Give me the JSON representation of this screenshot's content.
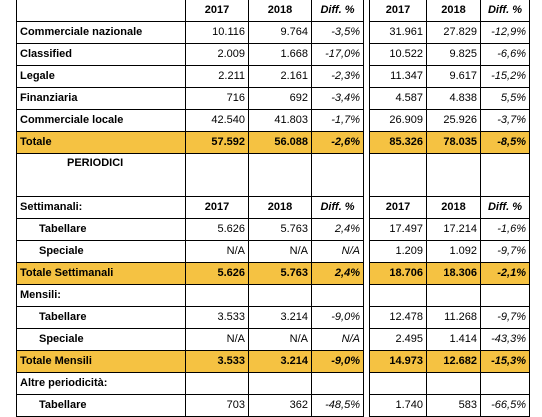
{
  "header": {
    "y1": "2017",
    "y2": "2018",
    "diff": "Diff. %"
  },
  "rows_top": [
    {
      "label": "Commerciale nazionale",
      "a1": "10.116",
      "a2": "9.764",
      "ad": "-3,5%",
      "b1": "31.961",
      "b2": "27.829",
      "bd": "-12,9%"
    },
    {
      "label": "Classified",
      "a1": "2.009",
      "a2": "1.668",
      "ad": "-17,0%",
      "b1": "10.522",
      "b2": "9.825",
      "bd": "-6,6%"
    },
    {
      "label": "Legale",
      "a1": "2.211",
      "a2": "2.161",
      "ad": "-2,3%",
      "b1": "11.347",
      "b2": "9.617",
      "bd": "-15,2%"
    },
    {
      "label": "Finanziaria",
      "a1": "716",
      "a2": "692",
      "ad": "-3,4%",
      "b1": "4.587",
      "b2": "4.838",
      "bd": "5,5%"
    },
    {
      "label": "Commerciale locale",
      "a1": "42.540",
      "a2": "41.803",
      "ad": "-1,7%",
      "b1": "26.909",
      "b2": "25.926",
      "bd": "-3,7%"
    }
  ],
  "totale": {
    "label": "Totale",
    "a1": "57.592",
    "a2": "56.088",
    "ad": "-2,6%",
    "b1": "85.326",
    "b2": "78.035",
    "bd": "-8,5%"
  },
  "periodici_label": "PERIODICI",
  "settimanali": {
    "label": "Settimanali:",
    "rows": [
      {
        "label": "Tabellare",
        "a1": "5.626",
        "a2": "5.763",
        "ad": "2,4%",
        "b1": "17.497",
        "b2": "17.214",
        "bd": "-1,6%"
      },
      {
        "label": "Speciale",
        "a1": "N/A",
        "a2": "N/A",
        "ad": "N/A",
        "b1": "1.209",
        "b2": "1.092",
        "bd": "-9,7%"
      }
    ],
    "total": {
      "label": "Totale Settimanali",
      "a1": "5.626",
      "a2": "5.763",
      "ad": "2,4%",
      "b1": "18.706",
      "b2": "18.306",
      "bd": "-2,1%"
    }
  },
  "mensili": {
    "label": "Mensili:",
    "rows": [
      {
        "label": "Tabellare",
        "a1": "3.533",
        "a2": "3.214",
        "ad": "-9,0%",
        "b1": "12.478",
        "b2": "11.268",
        "bd": "-9,7%"
      },
      {
        "label": "Speciale",
        "a1": "N/A",
        "a2": "N/A",
        "ad": "N/A",
        "b1": "2.495",
        "b2": "1.414",
        "bd": "-43,3%"
      }
    ],
    "total": {
      "label": "Totale Mensili",
      "a1": "3.533",
      "a2": "3.214",
      "ad": "-9,0%",
      "b1": "14.973",
      "b2": "12.682",
      "bd": "-15,3%"
    }
  },
  "altre": {
    "label": "Altre periodicità:",
    "rows": [
      {
        "label": "Tabellare",
        "a1": "703",
        "a2": "362",
        "ad": "-48,5%",
        "b1": "1.740",
        "b2": "583",
        "bd": "-66,5%"
      }
    ]
  }
}
